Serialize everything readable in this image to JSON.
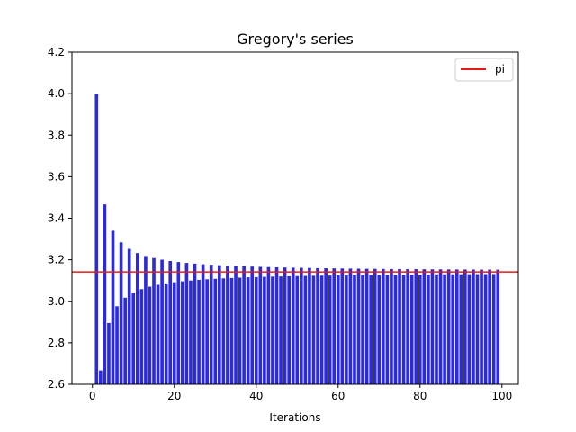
{
  "chart_data": {
    "type": "bar",
    "title": "Gregory's series",
    "xlabel": "Iterations",
    "ylabel": "",
    "xlim": [
      -5,
      104
    ],
    "ylim": [
      2.6,
      4.2
    ],
    "xticks": [
      0,
      20,
      40,
      60,
      80,
      100
    ],
    "yticks": [
      2.6,
      2.8,
      3.0,
      3.2,
      3.4,
      3.6,
      3.8,
      4.0,
      4.2
    ],
    "bar_color": "#2b2bdb",
    "bar_width": 0.8,
    "x": [
      1,
      2,
      3,
      4,
      5,
      6,
      7,
      8,
      9,
      10,
      11,
      12,
      13,
      14,
      15,
      16,
      17,
      18,
      19,
      20,
      21,
      22,
      23,
      24,
      25,
      26,
      27,
      28,
      29,
      30,
      31,
      32,
      33,
      34,
      35,
      36,
      37,
      38,
      39,
      40,
      41,
      42,
      43,
      44,
      45,
      46,
      47,
      48,
      49,
      50,
      51,
      52,
      53,
      54,
      55,
      56,
      57,
      58,
      59,
      60,
      61,
      62,
      63,
      64,
      65,
      66,
      67,
      68,
      69,
      70,
      71,
      72,
      73,
      74,
      75,
      76,
      77,
      78,
      79,
      80,
      81,
      82,
      83,
      84,
      85,
      86,
      87,
      88,
      89,
      90,
      91,
      92,
      93,
      94,
      95,
      96,
      97,
      98,
      99
    ],
    "values": [
      4.0,
      2.6667,
      3.4667,
      2.8952,
      3.3397,
      2.976,
      3.2837,
      3.0171,
      3.2524,
      3.0418,
      3.2323,
      3.0584,
      3.2184,
      3.0703,
      3.2082,
      3.0792,
      3.2004,
      3.0861,
      3.1942,
      3.0916,
      3.1892,
      3.0962,
      3.185,
      3.1,
      3.1816,
      3.1032,
      3.1786,
      3.106,
      3.1761,
      3.1083,
      3.1739,
      3.1105,
      3.1719,
      3.1123,
      3.1702,
      3.114,
      3.1687,
      3.1155,
      3.1673,
      3.1166,
      3.166,
      3.1178,
      3.1649,
      3.1189,
      3.1639,
      3.1198,
      3.1629,
      3.1207,
      3.162,
      3.1216,
      3.1612,
      3.1223,
      3.1605,
      3.123,
      3.1598,
      3.1236,
      3.1592,
      3.1242,
      3.1586,
      3.1249,
      3.1581,
      3.1254,
      3.1576,
      3.1259,
      3.1572,
      3.1264,
      3.1567,
      3.1268,
      3.1563,
      3.1272,
      3.156,
      3.1276,
      3.1556,
      3.128,
      3.1553,
      3.1283,
      3.155,
      3.1287,
      3.1547,
      3.129,
      3.1544,
      3.1293,
      3.1541,
      3.1296,
      3.1539,
      3.1299,
      3.1536,
      3.1301,
      3.1534,
      3.1304,
      3.1532,
      3.1306,
      3.153,
      3.1308,
      3.1528,
      3.1311,
      3.1526,
      3.1313,
      3.1524
    ],
    "hline": {
      "y": 3.14159,
      "color": "#e31a1c",
      "label": "pi"
    },
    "legend": {
      "position": "top-right",
      "entries": [
        "pi"
      ]
    }
  }
}
